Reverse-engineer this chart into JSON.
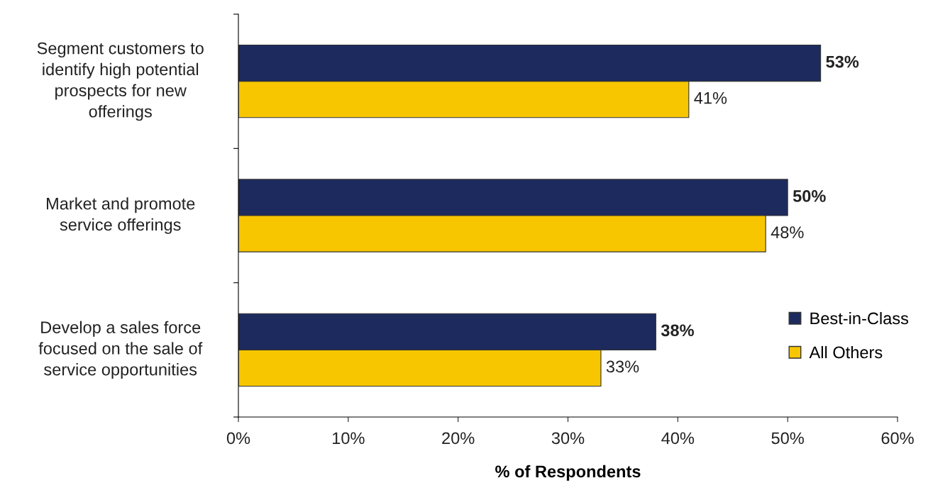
{
  "chart_data": {
    "type": "bar",
    "orientation": "horizontal",
    "xlabel": "% of Respondents",
    "categories": [
      "Segment customers to\nidentify high potential\nprospects for new\nofferings",
      "Market and promote\nservice offerings",
      "Develop a sales force\nfocused on the sale of\nservice opportunities"
    ],
    "series": [
      {
        "name": "Best-in-Class",
        "color": "#1c2a5e",
        "values": [
          53,
          50,
          38
        ],
        "value_labels": [
          "53%",
          "50%",
          "38%"
        ]
      },
      {
        "name": "All Others",
        "color": "#f7c600",
        "values": [
          41,
          48,
          33
        ],
        "value_labels": [
          "41%",
          "48%",
          "33%"
        ]
      }
    ],
    "xlim": [
      0,
      60
    ],
    "xticks": [
      {
        "value": 0,
        "label": "0%"
      },
      {
        "value": 10,
        "label": "10%"
      },
      {
        "value": 20,
        "label": "20%"
      },
      {
        "value": 30,
        "label": "30%"
      },
      {
        "value": 40,
        "label": "40%"
      },
      {
        "value": 50,
        "label": "50%"
      },
      {
        "value": 60,
        "label": "60%"
      }
    ],
    "grid": false,
    "legend": "bottom right"
  }
}
